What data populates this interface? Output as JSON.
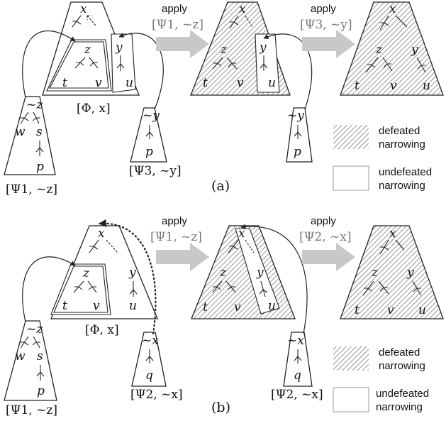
{
  "apply_word": "apply",
  "legend": {
    "defeated_line1": "defeated",
    "defeated_line2": "narrowing",
    "undefeated_line1": "undefeated",
    "undefeated_line2": "narrowing"
  },
  "panel_a": {
    "caption": "(a)",
    "step1": "[Ψ1, ~z]",
    "step2": "[Ψ3, ~y]",
    "phi_label": "[Φ, x]",
    "psi_left": "[Ψ1, ~z]",
    "psi_right": "[Ψ3, ~y]",
    "psi_right_small": "[Ψ3, ~y]"
  },
  "panel_b": {
    "caption": "(b)",
    "step1": "[Ψ1, ~z]",
    "step2": "[Ψ2, ~x]",
    "phi_label": "[Φ, x]",
    "psi_left": "[Ψ1, ~z]",
    "psi_right": "[Ψ2, ~x]",
    "psi_mid": "[Ψ2, ~x]"
  },
  "nodes": {
    "x": "x",
    "y": "y",
    "z": "z",
    "t": "t",
    "v": "v",
    "u": "u",
    "w": "w",
    "s": "s",
    "p": "p",
    "q": "q",
    "nz": "~z",
    "ny": "~y",
    "nx": "~x"
  },
  "colors": {
    "arrow": "#c8c8c8",
    "hatch": "#8a8a8a",
    "stroke": "#222222"
  }
}
